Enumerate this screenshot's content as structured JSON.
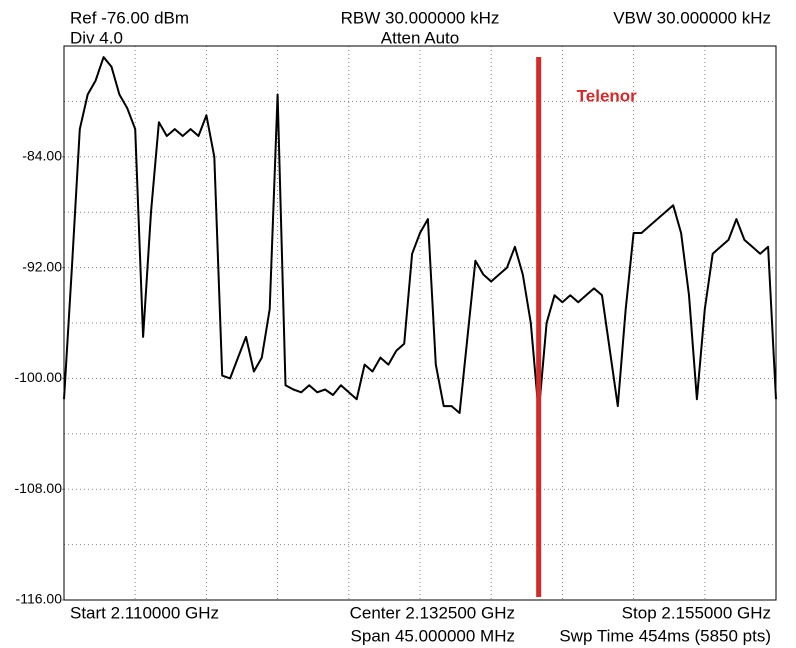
{
  "chart_data": {
    "type": "line",
    "header": {
      "ref": "Ref -76.00 dBm",
      "div": "Div 4.0",
      "rbw": "RBW 30.000000 kHz",
      "atten": "Atten Auto",
      "vbw": "VBW 30.000000 kHz"
    },
    "footer": {
      "start": "Start 2.110000 GHz",
      "center": "Center 2.132500 GHz",
      "span": "Span 45.000000 MHz",
      "stop": "Stop 2.155000 GHz",
      "sweep": "Swp Time 454ms (5850 pts)"
    },
    "x": [
      2.11,
      2.1105,
      2.111,
      2.1115,
      2.112,
      2.1125,
      2.113,
      2.1135,
      2.114,
      2.1145,
      2.115,
      2.1155,
      2.116,
      2.1165,
      2.117,
      2.1175,
      2.118,
      2.1185,
      2.119,
      2.1195,
      2.12,
      2.1205,
      2.121,
      2.1215,
      2.122,
      2.1225,
      2.123,
      2.1235,
      2.124,
      2.1245,
      2.125,
      2.1255,
      2.126,
      2.1265,
      2.127,
      2.1275,
      2.128,
      2.1285,
      2.129,
      2.1295,
      2.13,
      2.1305,
      2.131,
      2.1315,
      2.132,
      2.1325,
      2.133,
      2.1335,
      2.134,
      2.1345,
      2.135,
      2.1355,
      2.136,
      2.1365,
      2.137,
      2.1375,
      2.138,
      2.1385,
      2.139,
      2.1395,
      2.14,
      2.1405,
      2.141,
      2.1415,
      2.142,
      2.1425,
      2.143,
      2.1435,
      2.144,
      2.1445,
      2.145,
      2.1455,
      2.146,
      2.1465,
      2.147,
      2.1475,
      2.148,
      2.1485,
      2.149,
      2.1495,
      2.15,
      2.1505,
      2.151,
      2.1515,
      2.152,
      2.1525,
      2.153,
      2.1535,
      2.154,
      2.1545,
      2.155
    ],
    "values": [
      -101.5,
      -92,
      -82,
      -79.5,
      -78.5,
      -76.8,
      -77.5,
      -79.5,
      -80.5,
      -82,
      -97,
      -88,
      -81.5,
      -82.5,
      -82,
      -82.5,
      -82,
      -82.5,
      -81,
      -84,
      -99.8,
      -100,
      -98.5,
      -97,
      -99.5,
      -98.5,
      -95,
      -79.5,
      -100.5,
      -100.8,
      -101,
      -100.5,
      -101,
      -100.8,
      -101.2,
      -100.5,
      -101,
      -101.5,
      -99,
      -99.5,
      -98.5,
      -99,
      -98,
      -97.5,
      -91,
      -89.5,
      -88.5,
      -99,
      -102,
      -102,
      -102.5,
      -97,
      -91.5,
      -92.5,
      -93,
      -92.5,
      -92,
      -90.5,
      -92.5,
      -96,
      -102.5,
      -96,
      -94,
      -94.5,
      -94,
      -94.5,
      -94,
      -93.5,
      -94,
      -98,
      -102,
      -95,
      -89.5,
      -89.5,
      -89,
      -88.5,
      -88,
      -87.5,
      -89.5,
      -94,
      -101.5,
      -95,
      -91,
      -90.5,
      -90,
      -88.5,
      -90,
      -90.5,
      -91,
      -90.5,
      -101.5
    ],
    "color": "#000000",
    "xlim": [
      2.11,
      2.155
    ],
    "ylim": [
      -116,
      -76
    ],
    "yticks": [
      {
        "value": -84,
        "label": "-84.00"
      },
      {
        "value": -92,
        "label": "-92.00"
      },
      {
        "value": -100,
        "label": "-100.00"
      },
      {
        "value": -108,
        "label": "-108.00"
      },
      {
        "value": -116,
        "label": "-116.00"
      }
    ],
    "grid": true,
    "marker": {
      "x": 2.14,
      "label": "Telenor",
      "color": "#d42a2a"
    }
  }
}
